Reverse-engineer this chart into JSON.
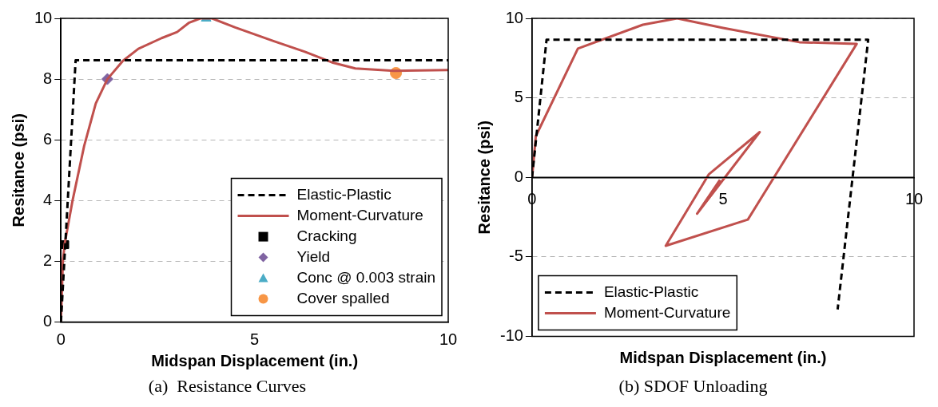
{
  "chart_data": [
    {
      "type": "line",
      "title": "(a)  Resistance Curves",
      "xlabel": "Midspan Displacement (in.)",
      "ylabel": "Resitance (psi)",
      "xlim": [
        0,
        10
      ],
      "xticks": [
        0,
        5,
        10
      ],
      "ylim": [
        0,
        10
      ],
      "yticks": [
        0,
        2,
        4,
        6,
        8,
        10
      ],
      "grid": "y",
      "legend": "bottom right",
      "series": [
        {
          "name": "Elastic-Plastic",
          "color": "#000000",
          "line_style": "dashed",
          "x": [
            0,
            0.38,
            10
          ],
          "values": [
            0,
            8.62,
            8.62
          ]
        },
        {
          "name": "Moment-Curvature",
          "color": "#c0504d",
          "line_style": "solid",
          "x": [
            0,
            0.05,
            0.1,
            0.3,
            0.6,
            0.9,
            1.2,
            1.6,
            2.0,
            2.6,
            3.0,
            3.3,
            3.6,
            3.9,
            4.5,
            5.5,
            6.3,
            7.0,
            7.6,
            8.6,
            10
          ],
          "values": [
            0,
            2,
            2.6,
            4,
            5.8,
            7.2,
            8,
            8.6,
            9.0,
            9.35,
            9.55,
            9.85,
            10,
            10,
            9.7,
            9.25,
            8.9,
            8.55,
            8.35,
            8.27,
            8.3
          ]
        },
        {
          "name": "Cracking",
          "color": "#000000",
          "type": "scatter",
          "marker": "square",
          "x": [
            0.1
          ],
          "values": [
            2.55
          ]
        },
        {
          "name": "Yield",
          "color": "#8064a2",
          "type": "scatter",
          "marker": "diamond",
          "x": [
            1.2
          ],
          "values": [
            8
          ]
        },
        {
          "name": "Conc @ 0.003 strain",
          "color": "#4bacc6",
          "type": "scatter",
          "marker": "triangle",
          "x": [
            3.75
          ],
          "values": [
            10
          ]
        },
        {
          "name": "Cover spalled",
          "color": "#f79646",
          "type": "scatter",
          "marker": "circle",
          "x": [
            8.65
          ],
          "values": [
            8.2
          ]
        }
      ]
    },
    {
      "type": "line",
      "title": "(b) SDOF Unloading",
      "xlabel": "Midspan Displacement (in.)",
      "ylabel": "Resitance (psi)",
      "xlim": [
        0,
        10
      ],
      "xticks": [
        0,
        5,
        10
      ],
      "ylim": [
        -10,
        10
      ],
      "yticks": [
        -10,
        -5,
        0,
        5,
        10
      ],
      "grid": "y",
      "legend": "bottom left",
      "series": [
        {
          "name": "Elastic-Plastic",
          "color": "#000000",
          "line_style": "dashed",
          "x": [
            0,
            0.38,
            8.8,
            8.0
          ],
          "values": [
            0,
            8.66,
            8.66,
            -8.3
          ]
        },
        {
          "name": "Moment-Curvature",
          "color": "#c0504d",
          "line_style": "solid",
          "x": [
            0,
            0.1,
            1.2,
            2.9,
            3.8,
            5.0,
            7.0,
            8.5,
            5.65,
            3.5,
            4.63,
            5.96,
            4.32,
            4.92
          ],
          "values": [
            0,
            2.6,
            8.1,
            9.6,
            10,
            9.4,
            8.5,
            8.4,
            -2.65,
            -4.3,
            0.2,
            2.85,
            -2.28,
            -0.15
          ]
        }
      ]
    }
  ]
}
